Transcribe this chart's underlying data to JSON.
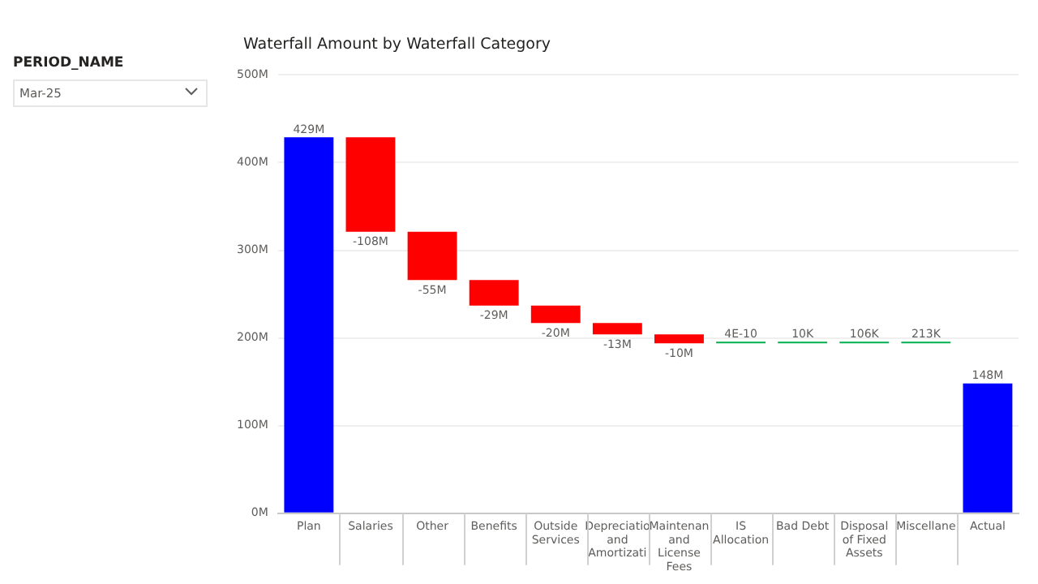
{
  "chart_data": {
    "type": "bar",
    "title": "Waterfall Amount by Waterfall Category",
    "categories": [
      "Plan",
      "Salaries",
      "Other",
      "Benefits",
      "Outside Services",
      "Depreciatio and Amortizati",
      "Maintenan and License Fees",
      "IS Allocation",
      "Bad Debt",
      "Disposal of Fixed Assets",
      "Miscellane",
      "Actual"
    ],
    "base": [
      0,
      429000000,
      321000000,
      266000000,
      237000000,
      217000000,
      204000000,
      194000000,
      194000000,
      194000000,
      194000000,
      0
    ],
    "values": [
      429000000,
      -108000000,
      -55000000,
      -29000000,
      -20000000,
      -13000000,
      -10000000,
      4e-10,
      10000,
      106000,
      213000,
      148000000
    ],
    "value_labels": [
      "429M",
      "-108M",
      "-55M",
      "-29M",
      "-20M",
      "-13M",
      "-10M",
      "4E-10",
      "10K",
      "106K",
      "213K",
      "148M"
    ],
    "colors": [
      "#0000ff",
      "#ff0000",
      "#ff0000",
      "#ff0000",
      "#ff0000",
      "#ff0000",
      "#ff0000",
      "#00b050",
      "#00b050",
      "#00b050",
      "#00b050",
      "#0000ff"
    ],
    "ylim": [
      0,
      500000000
    ],
    "yticks": [
      {
        "value": 0,
        "label": "0M"
      },
      {
        "value": 100000000,
        "label": "100M"
      },
      {
        "value": 200000000,
        "label": "200M"
      },
      {
        "value": 300000000,
        "label": "300M"
      },
      {
        "value": 400000000,
        "label": "400M"
      },
      {
        "value": 500000000,
        "label": "500M"
      }
    ],
    "grid": "y",
    "legend": false,
    "annotations": [
      "PERIOD_NAME",
      "Mar-25"
    ]
  }
}
